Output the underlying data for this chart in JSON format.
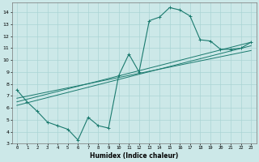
{
  "xlabel": "Humidex (Indice chaleur)",
  "bg_color": "#cce8e8",
  "grid_color": "#aad4d4",
  "line_color": "#1a7a6e",
  "xlim": [
    -0.5,
    23.5
  ],
  "ylim": [
    3,
    14.8
  ],
  "xticks": [
    0,
    1,
    2,
    3,
    4,
    5,
    6,
    7,
    8,
    9,
    10,
    11,
    12,
    13,
    14,
    15,
    16,
    17,
    18,
    19,
    20,
    21,
    22,
    23
  ],
  "yticks": [
    3,
    4,
    5,
    6,
    7,
    8,
    9,
    10,
    11,
    12,
    13,
    14
  ],
  "series1_x": [
    0,
    1,
    2,
    3,
    4,
    5,
    6,
    7,
    8,
    9,
    10,
    11,
    12,
    13,
    14,
    15,
    16,
    17,
    18,
    19,
    20,
    21,
    22,
    23
  ],
  "series1_y": [
    7.5,
    6.5,
    5.7,
    4.8,
    4.5,
    4.2,
    3.3,
    5.2,
    4.5,
    4.3,
    8.7,
    10.5,
    9.0,
    13.3,
    13.6,
    14.4,
    14.2,
    13.7,
    11.7,
    11.6,
    10.9,
    10.9,
    11.0,
    11.5
  ],
  "line2_x": [
    0,
    23
  ],
  "line2_y": [
    6.2,
    11.2
  ],
  "line3_x": [
    0,
    23
  ],
  "line3_y": [
    6.5,
    11.5
  ],
  "line4_x": [
    0,
    23
  ],
  "line4_y": [
    6.8,
    10.8
  ]
}
